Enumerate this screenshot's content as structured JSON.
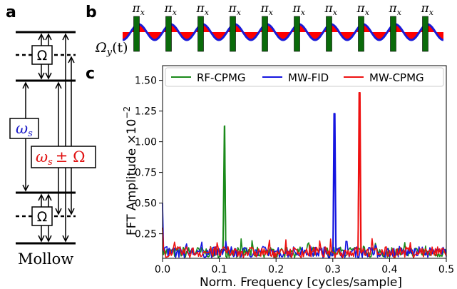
{
  "panels": {
    "a": "a",
    "b": "b",
    "c": "c"
  },
  "level_diagram": {
    "omega_box": "Ω",
    "omega_s": "ω",
    "omega_s_sub": "s",
    "omega_s_pm": "ω",
    "omega_s_pm_sub": "s",
    "omega_s_pm_rest": "± Ω",
    "caption": "Mollow",
    "colors": {
      "omega": "#1a8a1a",
      "omega_s": "#1a1ac8",
      "omega_pm": "#e01010"
    }
  },
  "pulse_sequence": {
    "pulse_label": "π",
    "pulse_label_sub": "x",
    "pulse_count": 10,
    "drive_label": "Ω",
    "drive_label_sub": "y",
    "drive_label_rest": "(t)",
    "colors": {
      "pulse": "#0a6b0a",
      "wave": "#1a1ad8",
      "fill": "#ff0000"
    }
  },
  "chart_data": {
    "type": "line",
    "xlabel": "Norm. Frequency [cycles/sample]",
    "ylabel": "FFT Amplitude ×10",
    "ylabel_exp": "−2",
    "xlim": [
      0.0,
      0.5
    ],
    "ylim": [
      0.05,
      1.62
    ],
    "xticks": [
      "0.0",
      "0.1",
      "0.2",
      "0.3",
      "0.4",
      "0.5"
    ],
    "yticks": [
      "0.25",
      "0.50",
      "0.75",
      "1.00",
      "1.25",
      "1.50"
    ],
    "legend_position": "top",
    "series": [
      {
        "name": "RF-CPMG",
        "color": "#1a8a1a",
        "peak_x": 0.109,
        "peak_y": 1.13,
        "floor": 0.1
      },
      {
        "name": "MW-FID",
        "color": "#1515e0",
        "peak_x": 0.303,
        "peak_y": 1.23,
        "floor": 0.1
      },
      {
        "name": "MW-CPMG",
        "color": "#ee1111",
        "peak_x": 0.347,
        "peak_y": 1.4,
        "floor": 0.1
      }
    ]
  }
}
